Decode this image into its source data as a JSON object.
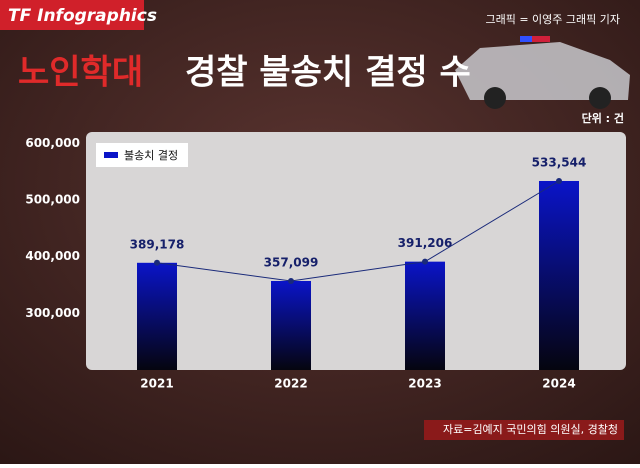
{
  "logo": "TF Infographics",
  "credit": "그래픽 = 이영주 그래픽 기자",
  "source": "자료=김예지 국민의힘 의원실, 경찰청",
  "chart_data": {
    "type": "bar",
    "title_highlight": "노인학대",
    "title": "경찰 불송치 결정 수",
    "unit": "단위 : 건",
    "categories": [
      "2021",
      "2022",
      "2023",
      "2024"
    ],
    "series": [
      {
        "name": "불송치 결정",
        "color": "#0a14c8",
        "values": [
          389178,
          357099,
          391206,
          533544
        ],
        "value_labels": [
          "389,178",
          "357,099",
          "391,206",
          "533,544"
        ]
      }
    ],
    "line": true,
    "line_color": "#1a2a7a",
    "ylim": [
      200000,
      620000
    ],
    "yticks": [
      {
        "value": 300000,
        "label": "300,000"
      },
      {
        "value": 400000,
        "label": "400,000"
      },
      {
        "value": 500000,
        "label": "500,000"
      },
      {
        "value": 600000,
        "label": "600,000"
      }
    ],
    "legend": "top-left"
  }
}
